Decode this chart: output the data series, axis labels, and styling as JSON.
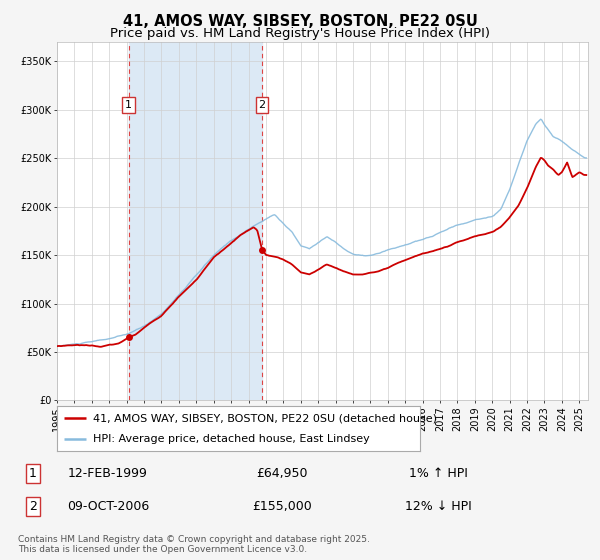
{
  "title1": "41, AMOS WAY, SIBSEY, BOSTON, PE22 0SU",
  "title2": "Price paid vs. HM Land Registry's House Price Index (HPI)",
  "background_color": "#f5f5f5",
  "plot_bg_color": "#ffffff",
  "ylabel_ticks": [
    "£0",
    "£50K",
    "£100K",
    "£150K",
    "£200K",
    "£250K",
    "£300K",
    "£350K"
  ],
  "ylabel_values": [
    0,
    50000,
    100000,
    150000,
    200000,
    250000,
    300000,
    350000
  ],
  "ylim": [
    0,
    370000
  ],
  "xlim_start": 1995.0,
  "xlim_end": 2025.5,
  "x_ticks": [
    1995,
    1996,
    1997,
    1998,
    1999,
    2000,
    2001,
    2002,
    2003,
    2004,
    2005,
    2006,
    2007,
    2008,
    2009,
    2010,
    2011,
    2012,
    2013,
    2014,
    2015,
    2016,
    2017,
    2018,
    2019,
    2020,
    2021,
    2022,
    2023,
    2024,
    2025
  ],
  "sale1_date": 1999.12,
  "sale1_price": 64950,
  "sale2_date": 2006.78,
  "sale2_price": 155000,
  "red_line_color": "#cc0000",
  "blue_line_color": "#88bbdd",
  "shaded_color": "#dce9f5",
  "dashed_line_color": "#dd4444",
  "legend_label1": "41, AMOS WAY, SIBSEY, BOSTON, PE22 0SU (detached house)",
  "legend_label2": "HPI: Average price, detached house, East Lindsey",
  "annotation1_date": "12-FEB-1999",
  "annotation1_price": "£64,950",
  "annotation1_hpi": "1% ↑ HPI",
  "annotation2_date": "09-OCT-2006",
  "annotation2_price": "£155,000",
  "annotation2_hpi": "12% ↓ HPI",
  "footer": "Contains HM Land Registry data © Crown copyright and database right 2025.\nThis data is licensed under the Open Government Licence v3.0.",
  "title_fontsize": 10.5,
  "subtitle_fontsize": 9.5,
  "tick_fontsize": 7,
  "legend_fontsize": 8,
  "annotation_fontsize": 9,
  "footer_fontsize": 6.5
}
